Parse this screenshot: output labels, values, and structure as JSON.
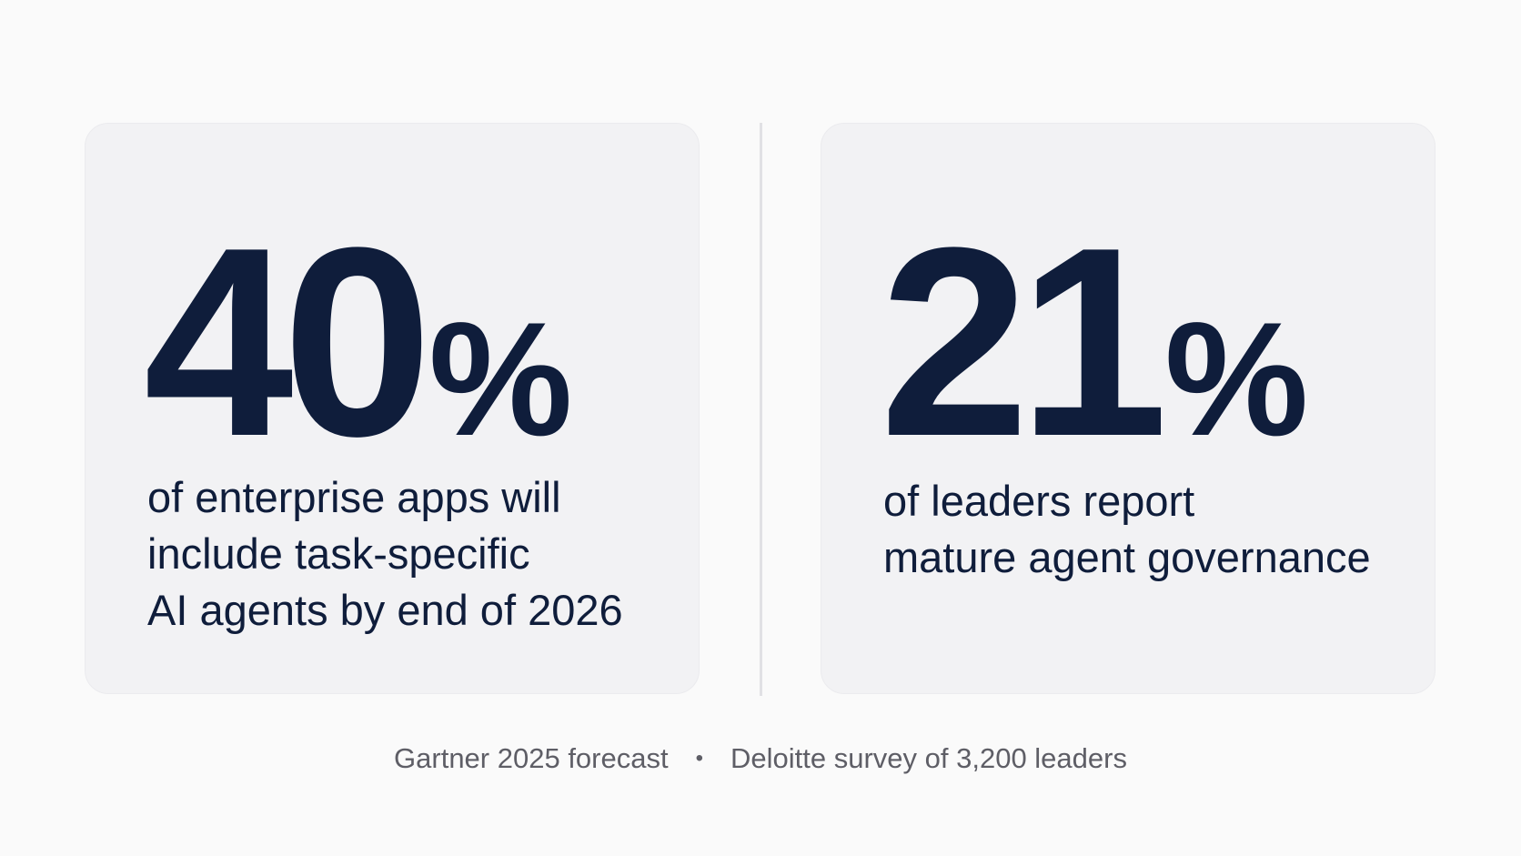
{
  "cards": [
    {
      "number": "40",
      "percent_sign": "%",
      "description_lines": [
        "of enterprise apps will",
        "include task-specific",
        "AI agents by end of 2026"
      ]
    },
    {
      "number": "21",
      "percent_sign": "%",
      "description_lines": [
        "of leaders report",
        "mature agent governance"
      ]
    }
  ],
  "sources": {
    "left": "Gartner 2025 forecast",
    "separator": "•",
    "right": "Deloitte survey of 3,200 leaders"
  },
  "colors": {
    "text_primary": "#0f1d3b",
    "text_secondary": "#5e5e66",
    "card_background": "#f2f2f4",
    "page_background": "#fafafa"
  }
}
